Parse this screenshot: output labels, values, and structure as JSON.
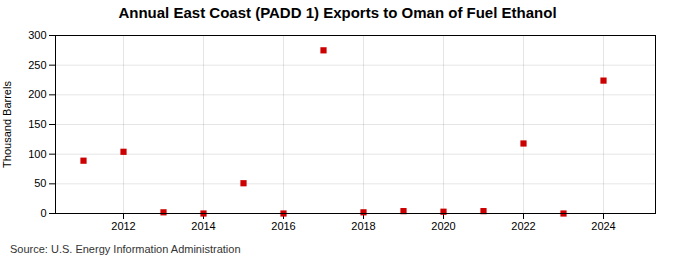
{
  "chart_data": {
    "type": "scatter",
    "title": "Annual East Coast (PADD 1) Exports to Oman of Fuel Ethanol",
    "ylabel": "Thousand Barrels",
    "source": "Source: U.S. Energy Information Administration",
    "x": [
      2011,
      2012,
      2013,
      2014,
      2015,
      2016,
      2017,
      2018,
      2019,
      2020,
      2021,
      2022,
      2023,
      2024
    ],
    "values": [
      89,
      104,
      2,
      0,
      51,
      0,
      275,
      2,
      4,
      3,
      4,
      118,
      0,
      224
    ],
    "color": "#cc0000",
    "marker": "square",
    "xlim": [
      2010.3,
      2025.3
    ],
    "xticks": [
      2012,
      2014,
      2016,
      2018,
      2020,
      2022,
      2024
    ],
    "ylim": [
      0,
      300
    ],
    "yticks": [
      0,
      50,
      100,
      150,
      200,
      250,
      300
    ],
    "grid": true
  }
}
